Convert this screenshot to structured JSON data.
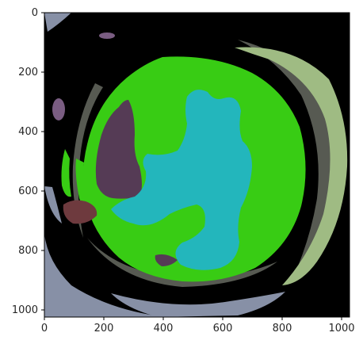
{
  "image": {
    "description_free": true,
    "x_axis": {
      "ticks": [
        0,
        200,
        400,
        600,
        800,
        1000
      ],
      "range": [
        0,
        1024
      ]
    },
    "y_axis": {
      "ticks": [
        0,
        200,
        400,
        600,
        800,
        1000
      ],
      "range": [
        0,
        1024
      ]
    },
    "colors": {
      "background": "#000000",
      "outer_ring_gray": "#8790a6",
      "ring_dark": "#575a52",
      "ring_light_green": "#9fbb83",
      "lens_green": "#38cc14",
      "center_cyan": "#23b6bc",
      "left_purple": "#553b55",
      "left_maroon": "#6e3a3e",
      "small_purple": "#7a5d82",
      "axis": "#000000",
      "tick_text": "#262626"
    }
  }
}
